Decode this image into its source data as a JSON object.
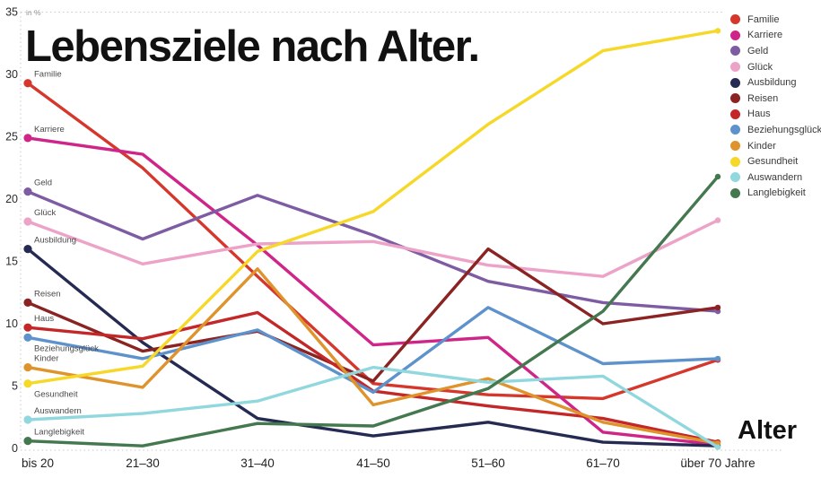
{
  "title": "Lebensziele nach Alter.",
  "y_axis_unit_label": "in %",
  "x_axis_title": "Alter",
  "chart_data": {
    "type": "line",
    "title": "Lebensziele nach Alter.",
    "ylabel": "in %",
    "xlabel": "Alter",
    "ylim": [
      0,
      35
    ],
    "y_ticks": [
      0,
      5,
      10,
      15,
      20,
      25,
      30,
      35
    ],
    "grid": "dotted line at top (35), bottom (0) and left axis only",
    "legend_position": "top-right",
    "categories": [
      "bis 20",
      "21–30",
      "31–40",
      "41–50",
      "51–60",
      "61–70",
      "über 70 Jahre"
    ],
    "series": [
      {
        "name": "Familie",
        "color": "#d6372c",
        "label_below": false,
        "values": [
          29.3,
          22.5,
          13.8,
          5.2,
          4.3,
          4.0,
          7.1
        ]
      },
      {
        "name": "Karriere",
        "color": "#d02588",
        "label_below": false,
        "values": [
          24.9,
          23.6,
          16.3,
          8.3,
          8.9,
          1.3,
          0.3
        ]
      },
      {
        "name": "Geld",
        "color": "#7d5ca3",
        "label_below": false,
        "values": [
          20.6,
          16.8,
          20.3,
          17.1,
          13.4,
          11.7,
          11.0
        ]
      },
      {
        "name": "Glück",
        "color": "#eda2c8",
        "label_below": false,
        "values": [
          18.2,
          14.8,
          16.4,
          16.6,
          14.7,
          13.8,
          18.3
        ]
      },
      {
        "name": "Ausbildung",
        "color": "#252a52",
        "label_below": false,
        "values": [
          16.0,
          8.5,
          2.4,
          1.0,
          2.1,
          0.5,
          0.2
        ]
      },
      {
        "name": "Reisen",
        "color": "#8a2322",
        "label_below": false,
        "values": [
          11.7,
          7.8,
          9.4,
          5.4,
          16.0,
          10.0,
          11.3
        ]
      },
      {
        "name": "Haus",
        "color": "#c32728",
        "label_below": false,
        "values": [
          9.7,
          8.8,
          10.9,
          4.6,
          3.4,
          2.4,
          0.5
        ]
      },
      {
        "name": "Beziehungsglück",
        "color": "#5e92cd",
        "label_below": true,
        "values": [
          8.9,
          7.2,
          9.5,
          4.5,
          11.3,
          6.8,
          7.2
        ]
      },
      {
        "name": "Kinder",
        "color": "#df932c",
        "label_below": false,
        "values": [
          6.5,
          4.9,
          14.4,
          3.5,
          5.6,
          2.1,
          0.4
        ]
      },
      {
        "name": "Gesundheit",
        "color": "#f6d829",
        "label_below": true,
        "values": [
          5.2,
          6.6,
          15.8,
          19.0,
          26.0,
          31.9,
          33.5
        ]
      },
      {
        "name": "Auswandern",
        "color": "#90d8de",
        "label_below": false,
        "values": [
          2.3,
          2.8,
          3.8,
          6.5,
          5.3,
          5.8,
          0.1
        ]
      },
      {
        "name": "Langlebigkeit",
        "color": "#44784f",
        "label_below": false,
        "values": [
          0.6,
          0.2,
          2.0,
          1.8,
          4.8,
          11.0,
          21.8
        ]
      }
    ]
  }
}
